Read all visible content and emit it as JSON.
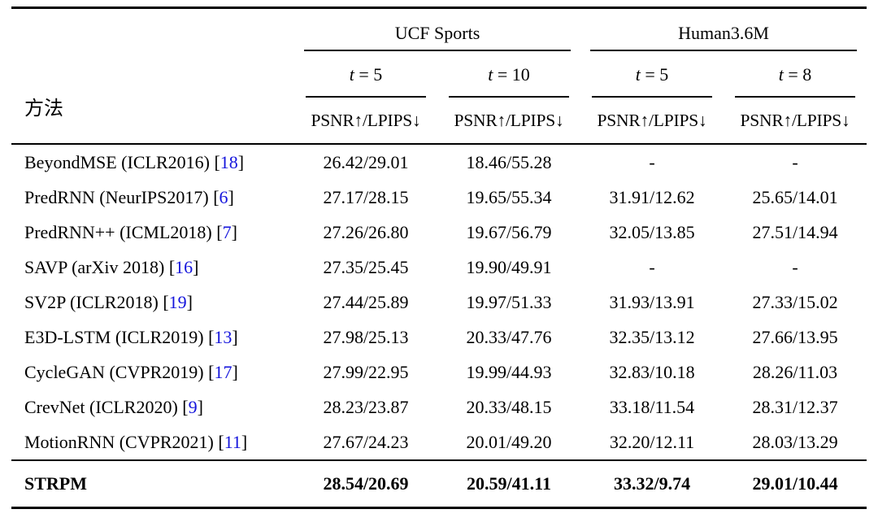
{
  "table": {
    "method_header": "方法",
    "groups": [
      {
        "label": "UCF Sports"
      },
      {
        "label": "Human3.6M"
      }
    ],
    "sub_labels": [
      {
        "lhs": "t",
        "rhs": " = 5"
      },
      {
        "lhs": "t",
        "rhs": " = 10"
      },
      {
        "lhs": "t",
        "rhs": " = 5"
      },
      {
        "lhs": "t",
        "rhs": " = 8"
      }
    ],
    "metric_label": "PSNR↑/LPIPS↓",
    "citation_brackets": {
      "open": "[",
      "close": "]"
    },
    "ref_color": "#1414dc",
    "rows": [
      {
        "method": "BeyondMSE (ICLR2016) ",
        "ref": "18",
        "values": [
          "26.42/29.01",
          "18.46/55.28",
          "-",
          "-"
        ]
      },
      {
        "method": "PredRNN (NeurIPS2017) ",
        "ref": "6",
        "values": [
          "27.17/28.15",
          "19.65/55.34",
          "31.91/12.62",
          "25.65/14.01"
        ]
      },
      {
        "method": "PredRNN++ (ICML2018) ",
        "ref": "7",
        "values": [
          "27.26/26.80",
          "19.67/56.79",
          "32.05/13.85",
          "27.51/14.94"
        ]
      },
      {
        "method": "SAVP (arXiv 2018) ",
        "ref": "16",
        "values": [
          "27.35/25.45",
          "19.90/49.91",
          "-",
          "-"
        ]
      },
      {
        "method": "SV2P (ICLR2018) ",
        "ref": "19",
        "values": [
          "27.44/25.89",
          "19.97/51.33",
          "31.93/13.91",
          "27.33/15.02"
        ]
      },
      {
        "method": "E3D-LSTM (ICLR2019) ",
        "ref": "13",
        "values": [
          "27.98/25.13",
          "20.33/47.76",
          "32.35/13.12",
          "27.66/13.95"
        ]
      },
      {
        "method": "CycleGAN (CVPR2019) ",
        "ref": "17",
        "values": [
          "27.99/22.95",
          "19.99/44.93",
          "32.83/10.18",
          "28.26/11.03"
        ]
      },
      {
        "method": "CrevNet (ICLR2020) ",
        "ref": "9",
        "values": [
          "28.23/23.87",
          "20.33/48.15",
          "33.18/11.54",
          "28.31/12.37"
        ]
      },
      {
        "method": "MotionRNN (CVPR2021) ",
        "ref": "11",
        "values": [
          "27.67/24.23",
          "20.01/49.20",
          "32.20/12.11",
          "28.03/13.29"
        ]
      }
    ],
    "footer_row": {
      "method": "STRPM",
      "values": [
        "28.54/20.69",
        "20.59/41.11",
        "33.32/9.74",
        "29.01/10.44"
      ]
    }
  }
}
